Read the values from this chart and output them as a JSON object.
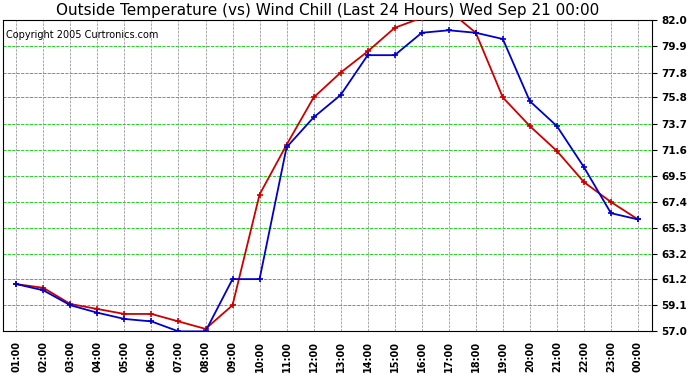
{
  "title": "Outside Temperature (vs) Wind Chill (Last 24 Hours) Wed Sep 21 00:00",
  "copyright": "Copyright 2005 Curtronics.com",
  "x_labels": [
    "01:00",
    "02:00",
    "03:00",
    "04:00",
    "05:00",
    "06:00",
    "07:00",
    "08:00",
    "09:00",
    "10:00",
    "11:00",
    "12:00",
    "13:00",
    "14:00",
    "15:00",
    "16:00",
    "17:00",
    "18:00",
    "19:00",
    "20:00",
    "21:00",
    "22:00",
    "23:00",
    "00:00"
  ],
  "outside_temp": [
    60.8,
    60.3,
    59.1,
    58.5,
    58.0,
    57.8,
    57.0,
    57.0,
    61.2,
    61.2,
    71.8,
    74.2,
    76.0,
    79.2,
    79.2,
    81.0,
    81.2,
    81.0,
    80.5,
    75.5,
    73.5,
    70.2,
    66.5,
    66.0
  ],
  "wind_chill": [
    60.8,
    60.5,
    59.2,
    58.8,
    58.4,
    58.4,
    57.8,
    57.2,
    59.1,
    68.0,
    72.0,
    75.8,
    77.8,
    79.5,
    81.4,
    82.2,
    82.8,
    81.0,
    75.8,
    73.5,
    71.5,
    69.0,
    67.4,
    66.0
  ],
  "temp_color": "#0000cc",
  "wind_color": "#cc0000",
  "bg_color": "#ffffff",
  "plot_bg": "#ffffff",
  "grid_color_h": "#00cc00",
  "grid_color_v": "#888888",
  "ylim": [
    57.0,
    82.0
  ],
  "yticks": [
    57.0,
    59.1,
    61.2,
    63.2,
    65.3,
    67.4,
    69.5,
    71.6,
    73.7,
    75.8,
    77.8,
    79.9,
    82.0
  ],
  "title_fontsize": 11,
  "copyright_fontsize": 7
}
